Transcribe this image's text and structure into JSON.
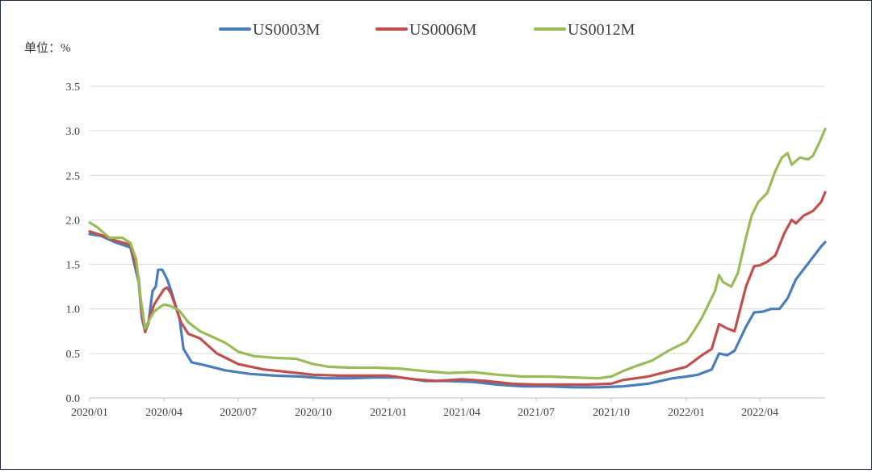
{
  "chart_data": {
    "type": "line",
    "unit_label": "单位：%",
    "ylim": [
      0,
      3.5
    ],
    "y_ticks": [
      "0.0",
      "0.5",
      "1.0",
      "1.5",
      "2.0",
      "2.5",
      "3.0",
      "3.5"
    ],
    "x_ticks": [
      "2020/01",
      "2020/04",
      "2020/07",
      "2020/10",
      "2021/01",
      "2021/04",
      "2021/07",
      "2021/10",
      "2022/01",
      "2022/04"
    ],
    "grid": true,
    "legend_position": "top",
    "series": [
      {
        "name": "US0003M",
        "color": "#4a7ebb",
        "points": [
          [
            "2020-01-01",
            1.84
          ],
          [
            "2020-01-15",
            1.82
          ],
          [
            "2020-02-01",
            1.75
          ],
          [
            "2020-02-20",
            1.69
          ],
          [
            "2020-03-01",
            1.3
          ],
          [
            "2020-03-05",
            0.9
          ],
          [
            "2020-03-09",
            0.75
          ],
          [
            "2020-03-13",
            0.84
          ],
          [
            "2020-03-18",
            1.2
          ],
          [
            "2020-03-22",
            1.25
          ],
          [
            "2020-03-25",
            1.44
          ],
          [
            "2020-03-30",
            1.44
          ],
          [
            "2020-04-05",
            1.33
          ],
          [
            "2020-04-10",
            1.2
          ],
          [
            "2020-04-20",
            0.9
          ],
          [
            "2020-04-25",
            0.55
          ],
          [
            "2020-05-05",
            0.4
          ],
          [
            "2020-05-20",
            0.37
          ],
          [
            "2020-06-15",
            0.31
          ],
          [
            "2020-07-15",
            0.27
          ],
          [
            "2020-08-15",
            0.25
          ],
          [
            "2020-09-15",
            0.24
          ],
          [
            "2020-10-15",
            0.22
          ],
          [
            "2020-11-15",
            0.22
          ],
          [
            "2020-12-15",
            0.23
          ],
          [
            "2021-01-15",
            0.23
          ],
          [
            "2021-02-15",
            0.19
          ],
          [
            "2021-03-15",
            0.19
          ],
          [
            "2021-04-15",
            0.18
          ],
          [
            "2021-05-15",
            0.15
          ],
          [
            "2021-06-15",
            0.13
          ],
          [
            "2021-07-15",
            0.13
          ],
          [
            "2021-08-15",
            0.12
          ],
          [
            "2021-09-15",
            0.12
          ],
          [
            "2021-10-15",
            0.13
          ],
          [
            "2021-11-15",
            0.16
          ],
          [
            "2021-12-15",
            0.22
          ],
          [
            "2022-01-01",
            0.24
          ],
          [
            "2022-01-15",
            0.26
          ],
          [
            "2022-02-01",
            0.32
          ],
          [
            "2022-02-10",
            0.5
          ],
          [
            "2022-02-20",
            0.48
          ],
          [
            "2022-03-01",
            0.53
          ],
          [
            "2022-03-15",
            0.8
          ],
          [
            "2022-03-25",
            0.96
          ],
          [
            "2022-04-05",
            0.97
          ],
          [
            "2022-04-15",
            1.0
          ],
          [
            "2022-04-25",
            1.0
          ],
          [
            "2022-05-05",
            1.12
          ],
          [
            "2022-05-15",
            1.33
          ],
          [
            "2022-05-25",
            1.45
          ],
          [
            "2022-06-05",
            1.58
          ],
          [
            "2022-06-15",
            1.7
          ],
          [
            "2022-06-20",
            1.75
          ]
        ]
      },
      {
        "name": "US0006M",
        "color": "#c0504d",
        "points": [
          [
            "2020-01-01",
            1.87
          ],
          [
            "2020-01-15",
            1.83
          ],
          [
            "2020-02-01",
            1.77
          ],
          [
            "2020-02-20",
            1.72
          ],
          [
            "2020-03-01",
            1.35
          ],
          [
            "2020-03-05",
            0.95
          ],
          [
            "2020-03-09",
            0.74
          ],
          [
            "2020-03-13",
            0.86
          ],
          [
            "2020-03-20",
            1.05
          ],
          [
            "2020-03-27",
            1.15
          ],
          [
            "2020-04-01",
            1.22
          ],
          [
            "2020-04-05",
            1.24
          ],
          [
            "2020-04-10",
            1.17
          ],
          [
            "2020-04-15",
            1.03
          ],
          [
            "2020-04-22",
            0.85
          ],
          [
            "2020-05-01",
            0.72
          ],
          [
            "2020-05-15",
            0.67
          ],
          [
            "2020-06-05",
            0.5
          ],
          [
            "2020-07-01",
            0.38
          ],
          [
            "2020-08-01",
            0.32
          ],
          [
            "2020-09-01",
            0.29
          ],
          [
            "2020-10-01",
            0.26
          ],
          [
            "2020-11-01",
            0.25
          ],
          [
            "2020-12-01",
            0.25
          ],
          [
            "2021-01-01",
            0.25
          ],
          [
            "2021-02-01",
            0.21
          ],
          [
            "2021-03-01",
            0.19
          ],
          [
            "2021-04-01",
            0.21
          ],
          [
            "2021-05-01",
            0.19
          ],
          [
            "2021-06-01",
            0.16
          ],
          [
            "2021-07-01",
            0.15
          ],
          [
            "2021-08-01",
            0.15
          ],
          [
            "2021-09-01",
            0.15
          ],
          [
            "2021-10-01",
            0.16
          ],
          [
            "2021-10-15",
            0.2
          ],
          [
            "2021-11-15",
            0.24
          ],
          [
            "2021-12-15",
            0.31
          ],
          [
            "2022-01-01",
            0.35
          ],
          [
            "2022-01-20",
            0.48
          ],
          [
            "2022-02-01",
            0.55
          ],
          [
            "2022-02-10",
            0.83
          ],
          [
            "2022-02-20",
            0.78
          ],
          [
            "2022-03-01",
            0.75
          ],
          [
            "2022-03-15",
            1.25
          ],
          [
            "2022-03-25",
            1.48
          ],
          [
            "2022-04-01",
            1.49
          ],
          [
            "2022-04-10",
            1.53
          ],
          [
            "2022-04-20",
            1.6
          ],
          [
            "2022-05-01",
            1.85
          ],
          [
            "2022-05-10",
            2.0
          ],
          [
            "2022-05-15",
            1.96
          ],
          [
            "2022-05-25",
            2.05
          ],
          [
            "2022-06-05",
            2.1
          ],
          [
            "2022-06-15",
            2.2
          ],
          [
            "2022-06-20",
            2.31
          ]
        ]
      },
      {
        "name": "US0012M",
        "color": "#9bbb59",
        "points": [
          [
            "2020-01-01",
            1.97
          ],
          [
            "2020-01-10",
            1.92
          ],
          [
            "2020-01-25",
            1.8
          ],
          [
            "2020-02-10",
            1.8
          ],
          [
            "2020-02-20",
            1.74
          ],
          [
            "2020-02-27",
            1.56
          ],
          [
            "2020-03-03",
            1.15
          ],
          [
            "2020-03-09",
            0.78
          ],
          [
            "2020-03-13",
            0.86
          ],
          [
            "2020-03-20",
            0.97
          ],
          [
            "2020-03-27",
            1.02
          ],
          [
            "2020-04-01",
            1.05
          ],
          [
            "2020-04-10",
            1.03
          ],
          [
            "2020-04-20",
            0.98
          ],
          [
            "2020-05-01",
            0.85
          ],
          [
            "2020-05-15",
            0.75
          ],
          [
            "2020-06-01",
            0.68
          ],
          [
            "2020-06-15",
            0.62
          ],
          [
            "2020-07-01",
            0.52
          ],
          [
            "2020-07-20",
            0.47
          ],
          [
            "2020-08-15",
            0.45
          ],
          [
            "2020-09-10",
            0.44
          ],
          [
            "2020-10-01",
            0.38
          ],
          [
            "2020-10-20",
            0.35
          ],
          [
            "2020-11-15",
            0.34
          ],
          [
            "2020-12-15",
            0.34
          ],
          [
            "2021-01-15",
            0.33
          ],
          [
            "2021-02-15",
            0.3
          ],
          [
            "2021-03-15",
            0.28
          ],
          [
            "2021-04-15",
            0.29
          ],
          [
            "2021-05-15",
            0.26
          ],
          [
            "2021-06-15",
            0.24
          ],
          [
            "2021-07-15",
            0.24
          ],
          [
            "2021-08-15",
            0.23
          ],
          [
            "2021-09-15",
            0.22
          ],
          [
            "2021-10-01",
            0.24
          ],
          [
            "2021-10-15",
            0.3
          ],
          [
            "2021-11-01",
            0.36
          ],
          [
            "2021-11-20",
            0.42
          ],
          [
            "2021-12-10",
            0.53
          ],
          [
            "2022-01-01",
            0.63
          ],
          [
            "2022-01-10",
            0.75
          ],
          [
            "2022-01-20",
            0.9
          ],
          [
            "2022-01-28",
            1.05
          ],
          [
            "2022-02-05",
            1.2
          ],
          [
            "2022-02-10",
            1.38
          ],
          [
            "2022-02-15",
            1.3
          ],
          [
            "2022-02-25",
            1.25
          ],
          [
            "2022-03-05",
            1.4
          ],
          [
            "2022-03-15",
            1.8
          ],
          [
            "2022-03-22",
            2.05
          ],
          [
            "2022-03-30",
            2.2
          ],
          [
            "2022-04-10",
            2.3
          ],
          [
            "2022-04-20",
            2.55
          ],
          [
            "2022-04-28",
            2.7
          ],
          [
            "2022-05-05",
            2.75
          ],
          [
            "2022-05-10",
            2.62
          ],
          [
            "2022-05-20",
            2.7
          ],
          [
            "2022-05-30",
            2.68
          ],
          [
            "2022-06-05",
            2.72
          ],
          [
            "2022-06-12",
            2.85
          ],
          [
            "2022-06-20",
            3.02
          ]
        ]
      }
    ]
  }
}
